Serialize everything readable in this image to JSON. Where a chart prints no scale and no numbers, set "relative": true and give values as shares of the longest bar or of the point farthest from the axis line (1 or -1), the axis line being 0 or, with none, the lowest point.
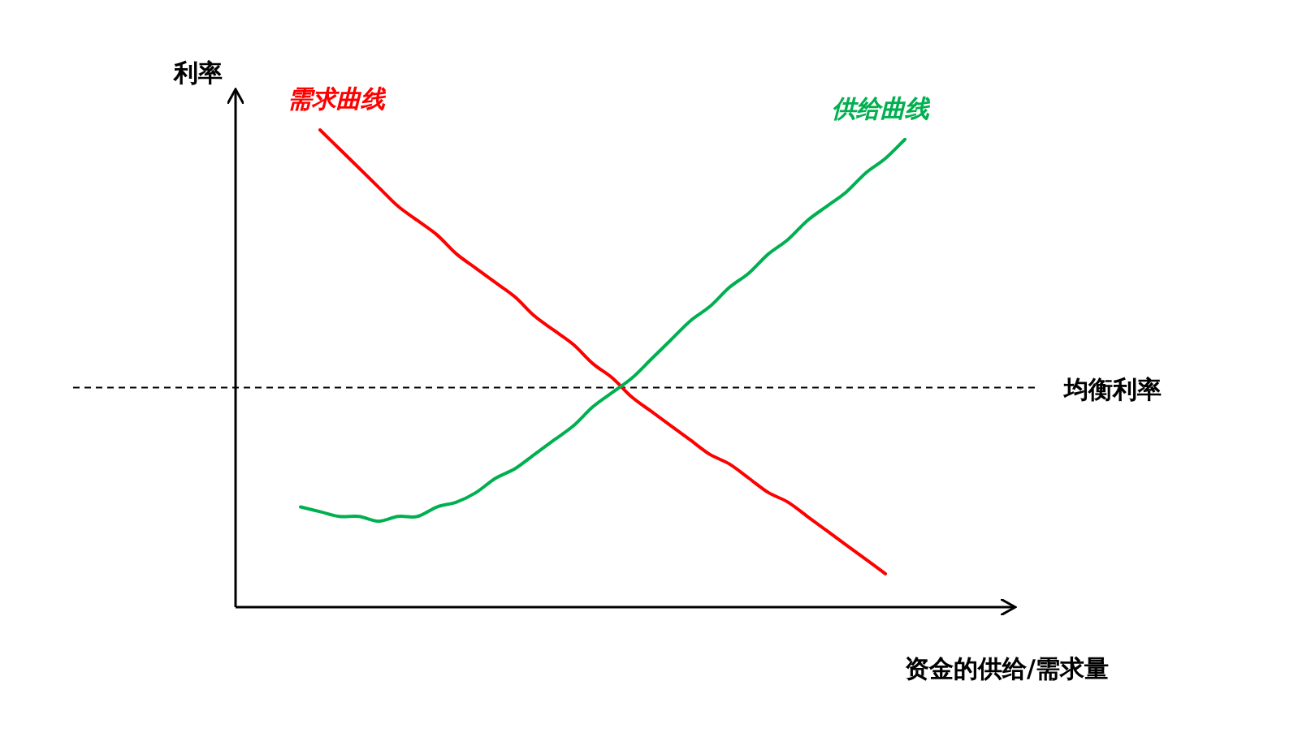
{
  "chart_data": {
    "type": "line",
    "relative": true,
    "ylabel": "利率",
    "xlabel": "资金的供给/需求量",
    "categories": [
      null,
      null,
      null,
      null,
      null,
      null,
      null,
      null,
      null,
      null,
      null,
      null,
      null,
      null,
      null,
      null,
      null,
      null,
      null,
      null,
      null,
      null,
      null,
      null,
      null,
      null,
      null,
      null,
      null,
      null,
      null,
      null
    ],
    "series": [
      {
        "name": "需求曲线",
        "color": "#ff0000",
        "values": [
          null,
          1.0,
          0.96,
          0.92,
          0.88,
          0.84,
          0.81,
          0.78,
          0.74,
          0.71,
          0.68,
          0.65,
          0.61,
          0.58,
          0.55,
          0.51,
          0.48,
          0.44,
          0.41,
          0.38,
          0.35,
          0.32,
          0.3,
          0.27,
          0.24,
          0.22,
          0.19,
          0.16,
          0.13,
          0.1,
          0.07,
          null
        ]
      },
      {
        "name": "供给曲线",
        "color": "#00b050",
        "values": [
          0.21,
          0.2,
          0.19,
          0.19,
          0.18,
          0.19,
          0.19,
          0.21,
          0.22,
          0.24,
          0.27,
          0.29,
          0.32,
          0.35,
          0.38,
          0.42,
          0.45,
          0.48,
          0.52,
          0.56,
          0.6,
          0.63,
          0.67,
          0.7,
          0.74,
          0.77,
          0.81,
          0.84,
          0.87,
          0.91,
          0.94,
          0.98
        ]
      }
    ],
    "ref_lines": [
      {
        "axis": "y",
        "value": 0.46,
        "label": "均衡利率",
        "line_style": "dashed",
        "color": "#000000"
      }
    ]
  }
}
